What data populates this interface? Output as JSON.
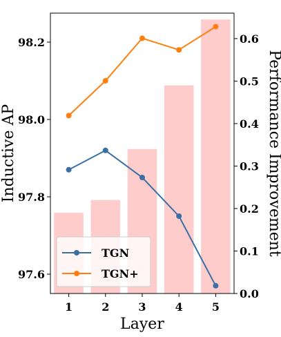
{
  "chart_data": {
    "type": "bar+line",
    "xlabel": "Layer",
    "ylabel_left": "Inductive AP",
    "ylabel_right": "Performance Improvement",
    "categories": [
      "1",
      "2",
      "3",
      "4",
      "5"
    ],
    "ylim_left": [
      97.55,
      98.275
    ],
    "ylim_right": [
      0.0,
      0.66
    ],
    "yticks_left": [
      "97.6",
      "97.8",
      "98.0",
      "98.2"
    ],
    "yticks_right": [
      "0.0",
      "0.1",
      "0.2",
      "0.3",
      "0.4",
      "0.5",
      "0.6"
    ],
    "bars": {
      "axis": "right",
      "color": "#ffcccc",
      "values": [
        0.19,
        0.22,
        0.34,
        0.49,
        0.645
      ]
    },
    "series": [
      {
        "name": "TGN",
        "axis": "left",
        "color": "#3a6fa5",
        "values": [
          97.87,
          97.92,
          97.85,
          97.75,
          97.57
        ]
      },
      {
        "name": "TGN+",
        "axis": "left",
        "color": "#ff7f0e",
        "values": [
          98.01,
          98.1,
          98.21,
          98.18,
          98.24
        ]
      }
    ],
    "legend": {
      "position": "lower-left",
      "entries": [
        "TGN",
        "TGN+"
      ]
    },
    "grid": false
  }
}
